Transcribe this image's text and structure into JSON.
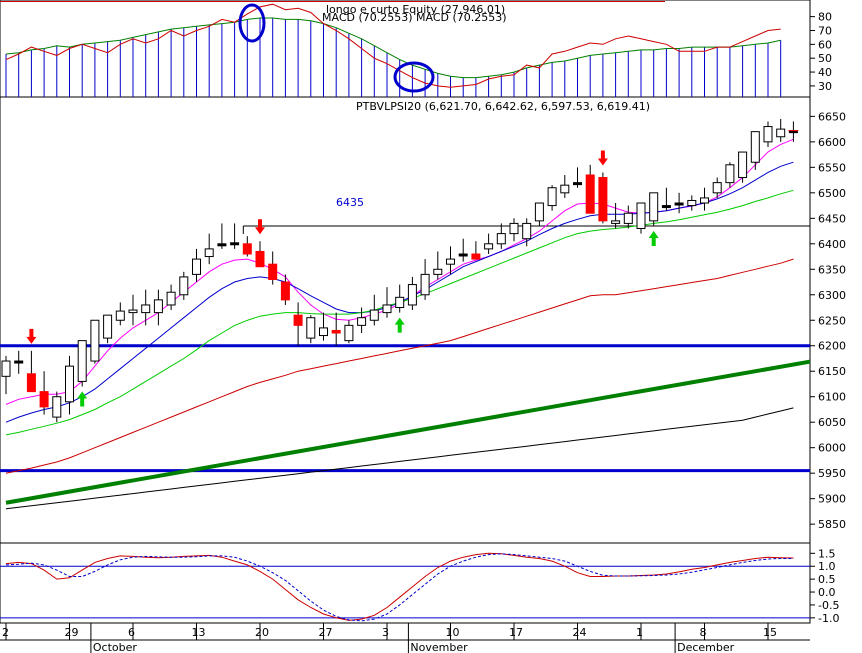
{
  "colors": {
    "background": "#ffffff",
    "up_candle": "#ffffff",
    "down_candle": "#ff0000",
    "doji": "#000000",
    "ma_fast": "#ff00ff",
    "ma_mid": "#0000cc",
    "ma_slow": "#00cc00",
    "ma_long": "#cc0000",
    "ma_very_long": "#000000",
    "support_line": "#0000cc",
    "trend_line": "#008000",
    "macd_hist": "#0000cc",
    "arrow_up": "#00cc00",
    "arrow_down": "#ff0000",
    "circle": "#0000cc"
  },
  "chart_data": [
    {
      "id": "macd-panel",
      "type": "line",
      "title": "longo e curto Equity (27,946.01)",
      "subtitle": "MACD (70.2553) MACD (70.2553)",
      "ylim": [
        22,
        92
      ],
      "yticks": [
        30,
        40,
        50,
        60,
        70,
        80
      ],
      "grid": false,
      "histogram_base": 22,
      "series": [
        {
          "name": "longo",
          "values": [
            53,
            54,
            56,
            57,
            59,
            58,
            60,
            61,
            62,
            63,
            65,
            67,
            69,
            71,
            72,
            73,
            74,
            75,
            76,
            78,
            79,
            79,
            78,
            78,
            77,
            75,
            72,
            68,
            64,
            59,
            54,
            49,
            45,
            42,
            39,
            37,
            36,
            36,
            37,
            38,
            40,
            43,
            45,
            47,
            48,
            50,
            52,
            53,
            54,
            55,
            56,
            56,
            57,
            57,
            58,
            58,
            58,
            58,
            59,
            60,
            61,
            63
          ]
        },
        {
          "name": "curto",
          "values": [
            49,
            53,
            58,
            55,
            52,
            57,
            60,
            57,
            54,
            60,
            64,
            61,
            64,
            70,
            66,
            70,
            73,
            78,
            76,
            82,
            87,
            89,
            85,
            86,
            83,
            75,
            70,
            64,
            57,
            50,
            46,
            41,
            36,
            32,
            30,
            29,
            30,
            31,
            35,
            37,
            38,
            45,
            43,
            53,
            55,
            58,
            61,
            60,
            64,
            66,
            64,
            62,
            60,
            55,
            55,
            55,
            58,
            58,
            62,
            66,
            70,
            71
          ]
        }
      ]
    },
    {
      "id": "price-panel",
      "type": "candlestick",
      "title": "PTBVLPSI20 (6,621.70, 6,642.62, 6,597.53, 6,619.41)",
      "ylim": [
        5813,
        6688
      ],
      "yticks": [
        5850,
        5900,
        5950,
        6000,
        6050,
        6100,
        6150,
        6200,
        6250,
        6300,
        6350,
        6400,
        6450,
        6500,
        6550,
        6600,
        6650
      ],
      "grid": false,
      "annotation": "6435",
      "candles": {
        "open": [
          6140,
          6170,
          6145,
          6110,
          6060,
          6090,
          6130,
          6170,
          6215,
          6250,
          6265,
          6265,
          6265,
          6280,
          6300,
          6340,
          6375,
          6400,
          6400,
          6400,
          6385,
          6360,
          6325,
          6260,
          6215,
          6220,
          6230,
          6210,
          6240,
          6250,
          6265,
          6275,
          6280,
          6300,
          6340,
          6360,
          6380,
          6380,
          6390,
          6400,
          6420,
          6410,
          6445,
          6475,
          6500,
          6520,
          6535,
          6530,
          6440,
          6440,
          6430,
          6445,
          6475,
          6480,
          6475,
          6480,
          6500,
          6520,
          6530,
          6560,
          6600,
          6610,
          6620
        ],
        "high": [
          6180,
          6190,
          6190,
          6150,
          6110,
          6180,
          6175,
          6210,
          6260,
          6285,
          6300,
          6310,
          6310,
          6320,
          6345,
          6390,
          6420,
          6440,
          6440,
          6415,
          6405,
          6385,
          6340,
          6285,
          6260,
          6265,
          6265,
          6250,
          6275,
          6300,
          6315,
          6320,
          6335,
          6370,
          6385,
          6395,
          6410,
          6405,
          6420,
          6440,
          6450,
          6450,
          6480,
          6515,
          6535,
          6550,
          6555,
          6540,
          6480,
          6475,
          6480,
          6500,
          6510,
          6500,
          6495,
          6510,
          6530,
          6560,
          6575,
          6615,
          6640,
          6645,
          6640
        ],
        "low": [
          6105,
          6145,
          6110,
          6065,
          6050,
          6065,
          6120,
          6165,
          6205,
          6240,
          6240,
          6240,
          6240,
          6270,
          6290,
          6325,
          6360,
          6390,
          6390,
          6375,
          6355,
          6320,
          6280,
          6200,
          6205,
          6210,
          6200,
          6205,
          6225,
          6240,
          6255,
          6265,
          6270,
          6290,
          6330,
          6340,
          6365,
          6370,
          6380,
          6390,
          6405,
          6395,
          6435,
          6465,
          6490,
          6510,
          6515,
          6440,
          6430,
          6430,
          6420,
          6435,
          6465,
          6460,
          6465,
          6465,
          6490,
          6510,
          6520,
          6545,
          6590,
          6600,
          6600
        ],
        "close": [
          6170,
          6168,
          6110,
          6080,
          6100,
          6160,
          6210,
          6250,
          6260,
          6268,
          6270,
          6280,
          6290,
          6305,
          6335,
          6370,
          6390,
          6400,
          6402,
          6380,
          6355,
          6330,
          6290,
          6240,
          6255,
          6235,
          6225,
          6240,
          6255,
          6270,
          6280,
          6295,
          6320,
          6340,
          6350,
          6370,
          6380,
          6370,
          6400,
          6420,
          6440,
          6440,
          6480,
          6510,
          6515,
          6520,
          6460,
          6445,
          6445,
          6460,
          6480,
          6500,
          6472,
          6480,
          6485,
          6490,
          6520,
          6555,
          6580,
          6620,
          6630,
          6625,
          6622
        ]
      },
      "series": [
        {
          "name": "MA fast",
          "values": [
            6085,
            6095,
            6100,
            6105,
            6105,
            6110,
            6130,
            6160,
            6190,
            6215,
            6235,
            6250,
            6265,
            6285,
            6305,
            6325,
            6345,
            6360,
            6368,
            6370,
            6362,
            6350,
            6335,
            6305,
            6280,
            6262,
            6252,
            6250,
            6255,
            6262,
            6270,
            6282,
            6298,
            6315,
            6330,
            6345,
            6360,
            6368,
            6375,
            6385,
            6398,
            6410,
            6425,
            6445,
            6465,
            6478,
            6480,
            6478,
            6470,
            6462,
            6460,
            6462,
            6465,
            6470,
            6474,
            6480,
            6492,
            6510,
            6530,
            6555,
            6580,
            6595,
            6605
          ]
        },
        {
          "name": "MA mid",
          "values": [
            6050,
            6060,
            6068,
            6075,
            6080,
            6088,
            6100,
            6115,
            6135,
            6155,
            6175,
            6195,
            6215,
            6235,
            6255,
            6275,
            6295,
            6312,
            6325,
            6332,
            6335,
            6332,
            6325,
            6312,
            6298,
            6285,
            6272,
            6265,
            6265,
            6268,
            6275,
            6285,
            6298,
            6310,
            6325,
            6340,
            6355,
            6365,
            6375,
            6385,
            6395,
            6405,
            6418,
            6430,
            6440,
            6448,
            6455,
            6458,
            6458,
            6458,
            6460,
            6462,
            6465,
            6470,
            6475,
            6480,
            6488,
            6498,
            6510,
            6525,
            6540,
            6552,
            6560
          ]
        },
        {
          "name": "MA slow",
          "values": [
            6025,
            6030,
            6036,
            6042,
            6048,
            6055,
            6065,
            6075,
            6088,
            6100,
            6115,
            6130,
            6145,
            6160,
            6175,
            6192,
            6210,
            6225,
            6240,
            6250,
            6258,
            6262,
            6265,
            6265,
            6263,
            6262,
            6262,
            6262,
            6265,
            6270,
            6278,
            6285,
            6293,
            6302,
            6312,
            6322,
            6332,
            6342,
            6352,
            6362,
            6372,
            6382,
            6392,
            6402,
            6412,
            6420,
            6425,
            6428,
            6430,
            6433,
            6436,
            6440,
            6443,
            6447,
            6452,
            6457,
            6462,
            6468,
            6475,
            6483,
            6490,
            6498,
            6505
          ]
        },
        {
          "name": "MA long",
          "values": [
            5950,
            5955,
            5960,
            5966,
            5972,
            5980,
            5990,
            6000,
            6010,
            6020,
            6030,
            6040,
            6050,
            6060,
            6070,
            6080,
            6090,
            6100,
            6110,
            6120,
            6128,
            6135,
            6142,
            6150,
            6155,
            6160,
            6165,
            6170,
            6175,
            6180,
            6185,
            6190,
            6195,
            6200,
            6205,
            6210,
            6218,
            6226,
            6234,
            6242,
            6250,
            6258,
            6266,
            6274,
            6282,
            6290,
            6298,
            6300,
            6300,
            6304,
            6308,
            6312,
            6316,
            6320,
            6324,
            6328,
            6332,
            6338,
            6344,
            6350,
            6356,
            6362,
            6370
          ]
        },
        {
          "name": "MA very long",
          "values": [
            5880,
            5883,
            5886,
            5889,
            5892,
            5895,
            5898,
            5901,
            5904,
            5907,
            5910,
            5913,
            5916,
            5919,
            5922,
            5925,
            5928,
            5931,
            5934,
            5937,
            5940,
            5943,
            5946,
            5949,
            5952,
            5955,
            5958,
            5961,
            5964,
            5967,
            5970,
            5973,
            5976,
            5979,
            5982,
            5985,
            5988,
            5991,
            5994,
            5997,
            6000,
            6003,
            6006,
            6009,
            6012,
            6015,
            6018,
            6021,
            6024,
            6027,
            6030,
            6033,
            6036,
            6039,
            6042,
            6045,
            6048,
            6051,
            6054,
            6060,
            6066,
            6072,
            6078
          ]
        }
      ],
      "horizontal_lines": [
        {
          "name": "support-6200",
          "value": 6200
        },
        {
          "name": "support-5955",
          "value": 5955
        },
        {
          "name": "resistance-6435",
          "value": 6435,
          "from_index": 19
        }
      ],
      "trend_line": {
        "from": [
          0,
          5892
        ],
        "to": [
          75,
          6220
        ]
      },
      "down_arrows": [
        2,
        20,
        47
      ],
      "up_arrows": [
        6,
        31,
        51
      ]
    },
    {
      "id": "oscillator-panel",
      "type": "line",
      "ylim": [
        -1.2,
        1.9
      ],
      "yticks": [
        -1.0,
        -0.5,
        0.0,
        0.5,
        1.0,
        1.5
      ],
      "grid": false,
      "reference_lines": [
        1.0,
        -1.0
      ],
      "series": [
        {
          "name": "fast",
          "values": [
            1.1,
            1.15,
            1.1,
            0.85,
            0.5,
            0.55,
            0.85,
            1.15,
            1.3,
            1.4,
            1.38,
            1.35,
            1.33,
            1.35,
            1.38,
            1.4,
            1.42,
            1.35,
            1.2,
            1.05,
            0.8,
            0.5,
            0.1,
            -0.3,
            -0.6,
            -0.85,
            -1.0,
            -1.1,
            -1.05,
            -0.9,
            -0.6,
            -0.2,
            0.2,
            0.6,
            0.95,
            1.2,
            1.35,
            1.45,
            1.5,
            1.48,
            1.42,
            1.35,
            1.3,
            1.2,
            1.0,
            0.75,
            0.6,
            0.6,
            0.62,
            0.62,
            0.64,
            0.66,
            0.7,
            0.78,
            0.88,
            0.95,
            1.05,
            1.15,
            1.22,
            1.3,
            1.35,
            1.33,
            1.32
          ]
        },
        {
          "name": "slow",
          "values": [
            1.05,
            1.08,
            1.12,
            1.05,
            0.85,
            0.6,
            0.6,
            0.8,
            1.05,
            1.25,
            1.35,
            1.38,
            1.36,
            1.35,
            1.35,
            1.37,
            1.4,
            1.4,
            1.35,
            1.2,
            1.0,
            0.75,
            0.45,
            0.05,
            -0.35,
            -0.7,
            -0.95,
            -1.08,
            -1.12,
            -1.05,
            -0.85,
            -0.5,
            -0.1,
            0.3,
            0.7,
            1.0,
            1.2,
            1.35,
            1.45,
            1.48,
            1.45,
            1.4,
            1.35,
            1.3,
            1.2,
            1.0,
            0.8,
            0.65,
            0.62,
            0.62,
            0.63,
            0.64,
            0.66,
            0.7,
            0.77,
            0.86,
            0.95,
            1.05,
            1.15,
            1.22,
            1.28,
            1.3,
            1.3
          ]
        }
      ]
    }
  ],
  "x_axis": {
    "day_labels": [
      {
        "label": "2",
        "index": 0
      },
      {
        "label": "29",
        "index": 5
      },
      {
        "label": "6",
        "index": 10
      },
      {
        "label": "13",
        "index": 15
      },
      {
        "label": "20",
        "index": 20
      },
      {
        "label": "27",
        "index": 25
      },
      {
        "label": "3",
        "index": 30
      },
      {
        "label": "10",
        "index": 35
      },
      {
        "label": "17",
        "index": 40
      },
      {
        "label": "24",
        "index": 45
      },
      {
        "label": "1",
        "index": 50
      },
      {
        "label": "8",
        "index": 55
      },
      {
        "label": "15",
        "index": 60
      }
    ],
    "month_labels": [
      {
        "label": "October",
        "index": 7
      },
      {
        "label": "November",
        "index": 32
      },
      {
        "label": "December",
        "index": 53
      }
    ]
  }
}
